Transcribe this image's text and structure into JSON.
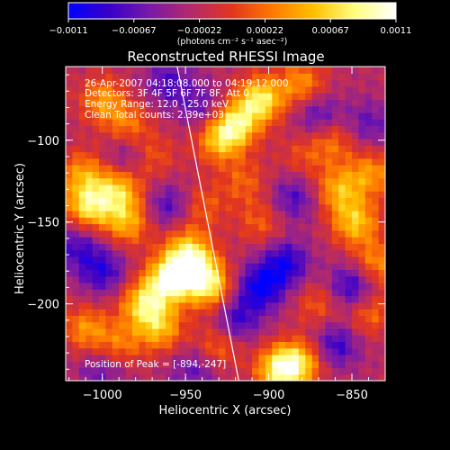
{
  "chart_data": {
    "type": "heatmap",
    "title": "Reconstructed RHESSI Image",
    "xlabel": "Heliocentric X (arcsec)",
    "ylabel": "Heliocentric Y (arcsec)",
    "xlim": [
      -1022,
      -830
    ],
    "ylim": [
      -247,
      -55
    ],
    "x_ticks": [
      -1000,
      -950,
      -900,
      -850
    ],
    "y_ticks": [
      -100,
      -150,
      -200
    ],
    "x_tick_labels": [
      "−1000",
      "−950",
      "−900",
      "−850"
    ],
    "y_tick_labels": [
      "−100",
      "−150",
      "−200"
    ],
    "colorbar": {
      "min": -0.0011,
      "max": 0.0011,
      "tick_labels": [
        "−0.0011",
        "−0.00067",
        "−0.00022",
        "0.00022",
        "0.00067",
        "0.0011"
      ],
      "units_label": "(photons cm⁻² s⁻¹ asec⁻²)",
      "colors": [
        "#0000ff",
        "#3a00c8",
        "#7a1aa8",
        "#b32a6a",
        "#e2361e",
        "#ff7a00",
        "#ffc000",
        "#ffff80",
        "#ffffff"
      ]
    },
    "annotations": [
      "26-Apr-2007 04:18:08.000 to 04:19:12.000",
      "Detectors: 3F 4F 5F 6F 7F 8F, Att 0",
      "Energy Range: 12.0 - 25.0 keV",
      "Clean    Total counts: 2.39e+03"
    ],
    "peak_label": "Position of Peak = [-894,-247]",
    "limb_line": [
      [
        -955,
        -55
      ],
      [
        -918,
        -247
      ]
    ],
    "blobs": [
      {
        "x": -1008,
        "y": -140,
        "v": 0.00095
      },
      {
        "x": -990,
        "y": -130,
        "v": 0.0008
      },
      {
        "x": -1012,
        "y": -120,
        "v": 0.0006
      },
      {
        "x": -985,
        "y": -150,
        "v": 0.0007
      },
      {
        "x": -960,
        "y": -185,
        "v": 0.0011
      },
      {
        "x": -945,
        "y": -178,
        "v": 0.001
      },
      {
        "x": -935,
        "y": -190,
        "v": 0.0008
      },
      {
        "x": -975,
        "y": -200,
        "v": 0.0009
      },
      {
        "x": -965,
        "y": -215,
        "v": 0.0007
      },
      {
        "x": -950,
        "y": -165,
        "v": 0.0006
      },
      {
        "x": -905,
        "y": -75,
        "v": 0.001
      },
      {
        "x": -920,
        "y": -90,
        "v": 0.0009
      },
      {
        "x": -930,
        "y": -100,
        "v": 0.0007
      },
      {
        "x": -880,
        "y": -65,
        "v": 0.0006
      },
      {
        "x": -893,
        "y": -240,
        "v": 0.0011
      },
      {
        "x": -880,
        "y": -235,
        "v": 0.0007
      },
      {
        "x": -858,
        "y": -130,
        "v": 0.0007
      },
      {
        "x": -848,
        "y": -150,
        "v": 0.0008
      },
      {
        "x": -838,
        "y": -120,
        "v": 0.0006
      },
      {
        "x": -862,
        "y": -100,
        "v": 0.0005
      },
      {
        "x": -835,
        "y": -175,
        "v": 0.0006
      },
      {
        "x": -840,
        "y": -205,
        "v": 0.0005
      },
      {
        "x": -1000,
        "y": -75,
        "v": 0.0006
      },
      {
        "x": -985,
        "y": -90,
        "v": 0.0005
      },
      {
        "x": -1010,
        "y": -215,
        "v": 0.0006
      },
      {
        "x": -990,
        "y": -225,
        "v": 0.0005
      },
      {
        "x": -930,
        "y": -225,
        "v": 0.0005
      },
      {
        "x": -870,
        "y": -200,
        "v": 0.0004
      },
      {
        "x": -905,
        "y": -150,
        "v": 0.0004
      },
      {
        "x": -940,
        "y": -140,
        "v": 0.0004
      },
      {
        "x": -915,
        "y": -125,
        "v": 0.0004
      },
      {
        "x": -880,
        "y": -110,
        "v": 0.0003
      },
      {
        "x": -970,
        "y": -110,
        "v": 0.0004
      },
      {
        "x": -905,
        "y": -190,
        "v": -0.0008
      },
      {
        "x": -890,
        "y": -175,
        "v": -0.0007
      },
      {
        "x": -920,
        "y": -210,
        "v": -0.0006
      },
      {
        "x": -850,
        "y": -190,
        "v": -0.0007
      },
      {
        "x": -860,
        "y": -225,
        "v": -0.0006
      },
      {
        "x": -1000,
        "y": -180,
        "v": -0.0006
      },
      {
        "x": -1015,
        "y": -165,
        "v": -0.0005
      },
      {
        "x": -960,
        "y": -140,
        "v": -0.0005
      },
      {
        "x": -985,
        "y": -110,
        "v": -0.0004
      },
      {
        "x": -960,
        "y": -65,
        "v": -0.0005
      },
      {
        "x": -940,
        "y": -80,
        "v": -0.0004
      },
      {
        "x": -870,
        "y": -85,
        "v": -0.0005
      },
      {
        "x": -840,
        "y": -90,
        "v": -0.0004
      },
      {
        "x": -885,
        "y": -135,
        "v": -0.0005
      },
      {
        "x": -945,
        "y": -240,
        "v": -0.0004
      },
      {
        "x": -1000,
        "y": -240,
        "v": -0.0004
      }
    ]
  }
}
